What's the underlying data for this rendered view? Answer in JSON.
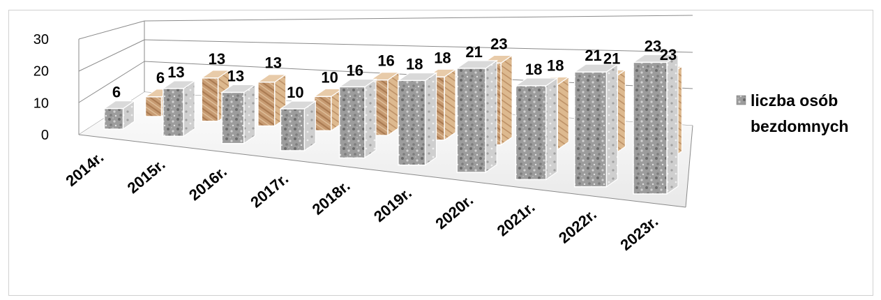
{
  "chart_data": {
    "type": "bar",
    "categories": [
      "2014r.",
      "2015r.",
      "2016r.",
      "2017r.",
      "2018r.",
      "2019r.",
      "2020r.",
      "2021r.",
      "2022r.",
      "2023r."
    ],
    "series": [
      {
        "name": "liczba osób bezdomnych",
        "values": [
          6,
          13,
          13,
          10,
          16,
          18,
          21,
          18,
          21,
          23
        ],
        "color": "#a8a8a8"
      },
      {
        "values": [
          6,
          13,
          13,
          10,
          16,
          18,
          23,
          18,
          21,
          23
        ],
        "color": "#c9a07a"
      }
    ],
    "y_ticks": [
      "0",
      "10",
      "20",
      "30"
    ],
    "ylim": [
      0,
      30
    ],
    "grid": true,
    "legend_position": "right",
    "legend_lines": [
      "liczba osób",
      "bezdomnych"
    ],
    "chart3d": true
  }
}
